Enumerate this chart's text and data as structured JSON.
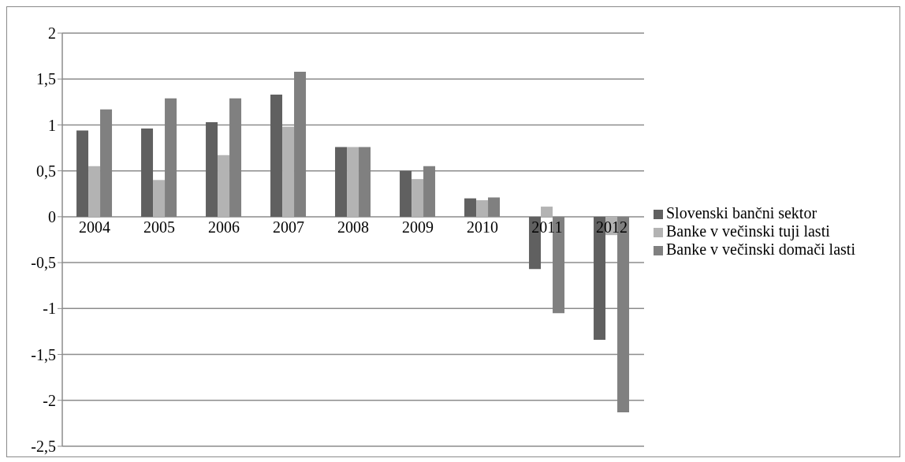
{
  "chart_data": {
    "type": "bar",
    "categories": [
      "2004",
      "2005",
      "2006",
      "2007",
      "2008",
      "2009",
      "2010",
      "2011",
      "2012"
    ],
    "series": [
      {
        "name": "Slovenski bančni sektor",
        "color": "#606060",
        "values": [
          0.94,
          0.96,
          1.03,
          1.33,
          0.76,
          0.5,
          0.2,
          -0.57,
          -1.34
        ]
      },
      {
        "name": "Banke v večinski tuji lasti",
        "color": "#b3b3b3",
        "values": [
          0.55,
          0.4,
          0.67,
          0.98,
          0.76,
          0.41,
          0.18,
          0.11,
          -0.2
        ]
      },
      {
        "name": "Banke v večinski domači lasti",
        "color": "#808080",
        "values": [
          1.17,
          1.29,
          1.29,
          1.58,
          0.76,
          0.55,
          0.21,
          -1.05,
          -2.13
        ]
      }
    ],
    "ylim": [
      -2.5,
      2
    ],
    "yticks": [
      {
        "value": -2.5,
        "label": "-2,5"
      },
      {
        "value": -2,
        "label": "-2"
      },
      {
        "value": -1.5,
        "label": "-1,5"
      },
      {
        "value": -1,
        "label": "-1"
      },
      {
        "value": -0.5,
        "label": "-0,5"
      },
      {
        "value": 0,
        "label": "0"
      },
      {
        "value": 0.5,
        "label": "0,5"
      },
      {
        "value": 1,
        "label": "1"
      },
      {
        "value": 1.5,
        "label": "1,5"
      },
      {
        "value": 2,
        "label": "2"
      }
    ],
    "grid": "y",
    "legend": "right"
  }
}
